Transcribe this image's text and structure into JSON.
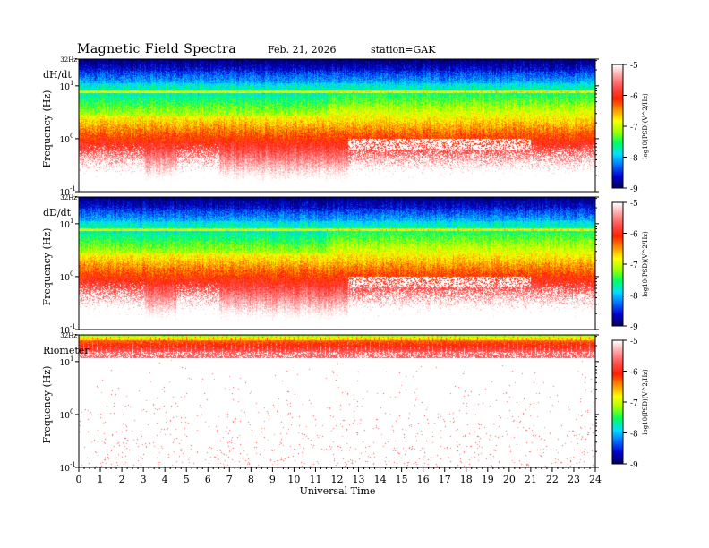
{
  "header": {
    "title": "Magnetic  Field  Spectra",
    "date": "Feb. 21, 2026",
    "station": "station=GAK"
  },
  "colorbar_stops": [
    "#000060",
    "#0000d0",
    "#0070ff",
    "#00e0ff",
    "#00ff60",
    "#a0ff00",
    "#ffff00",
    "#ff9000",
    "#ff2000",
    "#ff5050",
    "#ffa0a0",
    "#ffffff"
  ],
  "chart_data": [
    {
      "type": "heatmap",
      "panel_label": "dH/dt",
      "ylabel": "Frequency  (Hz)",
      "y_scale": "log",
      "ylim_hz": [
        0.1,
        32
      ],
      "y_ticks": [
        {
          "value": 32,
          "label": "32Hz"
        },
        {
          "value": 10,
          "label": "10",
          "sup": "1"
        },
        {
          "value": 1,
          "label": "10",
          "sup": "0"
        },
        {
          "value": 0.1,
          "label": "10",
          "sup": "-1"
        }
      ],
      "xlim_hours": [
        0,
        24
      ],
      "colorbar": {
        "label": "log10(PSD)(V^2/Hz)",
        "range": [
          -9,
          -5
        ],
        "ticks": [
          "-5",
          "-6",
          "-7",
          "-8",
          "-9"
        ]
      },
      "features": {
        "low_freq_white_gaps_hours": [
          [
            0,
            3
          ],
          [
            4.5,
            6.5
          ],
          [
            12.5,
            19
          ],
          [
            19,
            24
          ]
        ],
        "line_hz": 8
      }
    },
    {
      "type": "heatmap",
      "panel_label": "dD/dt",
      "ylabel": "Frequency  (Hz)",
      "y_scale": "log",
      "ylim_hz": [
        0.1,
        32
      ],
      "y_ticks": [
        {
          "value": 32,
          "label": "32Hz"
        },
        {
          "value": 10,
          "label": "10",
          "sup": "1"
        },
        {
          "value": 1,
          "label": "10",
          "sup": "0"
        },
        {
          "value": 0.1,
          "label": "10",
          "sup": "-1"
        }
      ],
      "xlim_hours": [
        0,
        24
      ],
      "colorbar": {
        "label": "log10(PSD)(V^2/Hz)",
        "range": [
          -9,
          -5
        ],
        "ticks": [
          "-5",
          "-6",
          "-7",
          "-8",
          "-9"
        ]
      },
      "features": {
        "low_freq_white_gaps_hours": [
          [
            0,
            3
          ],
          [
            4.5,
            6.5
          ],
          [
            12.5,
            19
          ],
          [
            19,
            24
          ]
        ],
        "line_hz": 8
      }
    },
    {
      "type": "heatmap",
      "panel_label": "Riometer",
      "ylabel": "Frequency  (Hz)",
      "y_scale": "log",
      "ylim_hz": [
        0.1,
        32
      ],
      "y_ticks": [
        {
          "value": 32,
          "label": "32Hz"
        },
        {
          "value": 10,
          "label": "10",
          "sup": "1"
        },
        {
          "value": 1,
          "label": "10",
          "sup": "0"
        },
        {
          "value": 0.1,
          "label": "10",
          "sup": "-1"
        }
      ],
      "xlim_hours": [
        0,
        24
      ],
      "colorbar": {
        "label": "log10(PSD)(V^2/Hz)",
        "range": [
          -9,
          -5
        ],
        "ticks": [
          "-5",
          "-6",
          "-7",
          "-8",
          "-9"
        ]
      },
      "features": {
        "high_band_hz": [
          12,
          32
        ],
        "remainder": "mostly white with sparse red speckle"
      }
    }
  ],
  "x_axis": {
    "label": "Universal  Time",
    "ticks": [
      "0",
      "1",
      "2",
      "3",
      "4",
      "5",
      "6",
      "7",
      "8",
      "9",
      "10",
      "11",
      "12",
      "13",
      "14",
      "15",
      "16",
      "17",
      "18",
      "19",
      "20",
      "21",
      "22",
      "23",
      "24"
    ]
  }
}
